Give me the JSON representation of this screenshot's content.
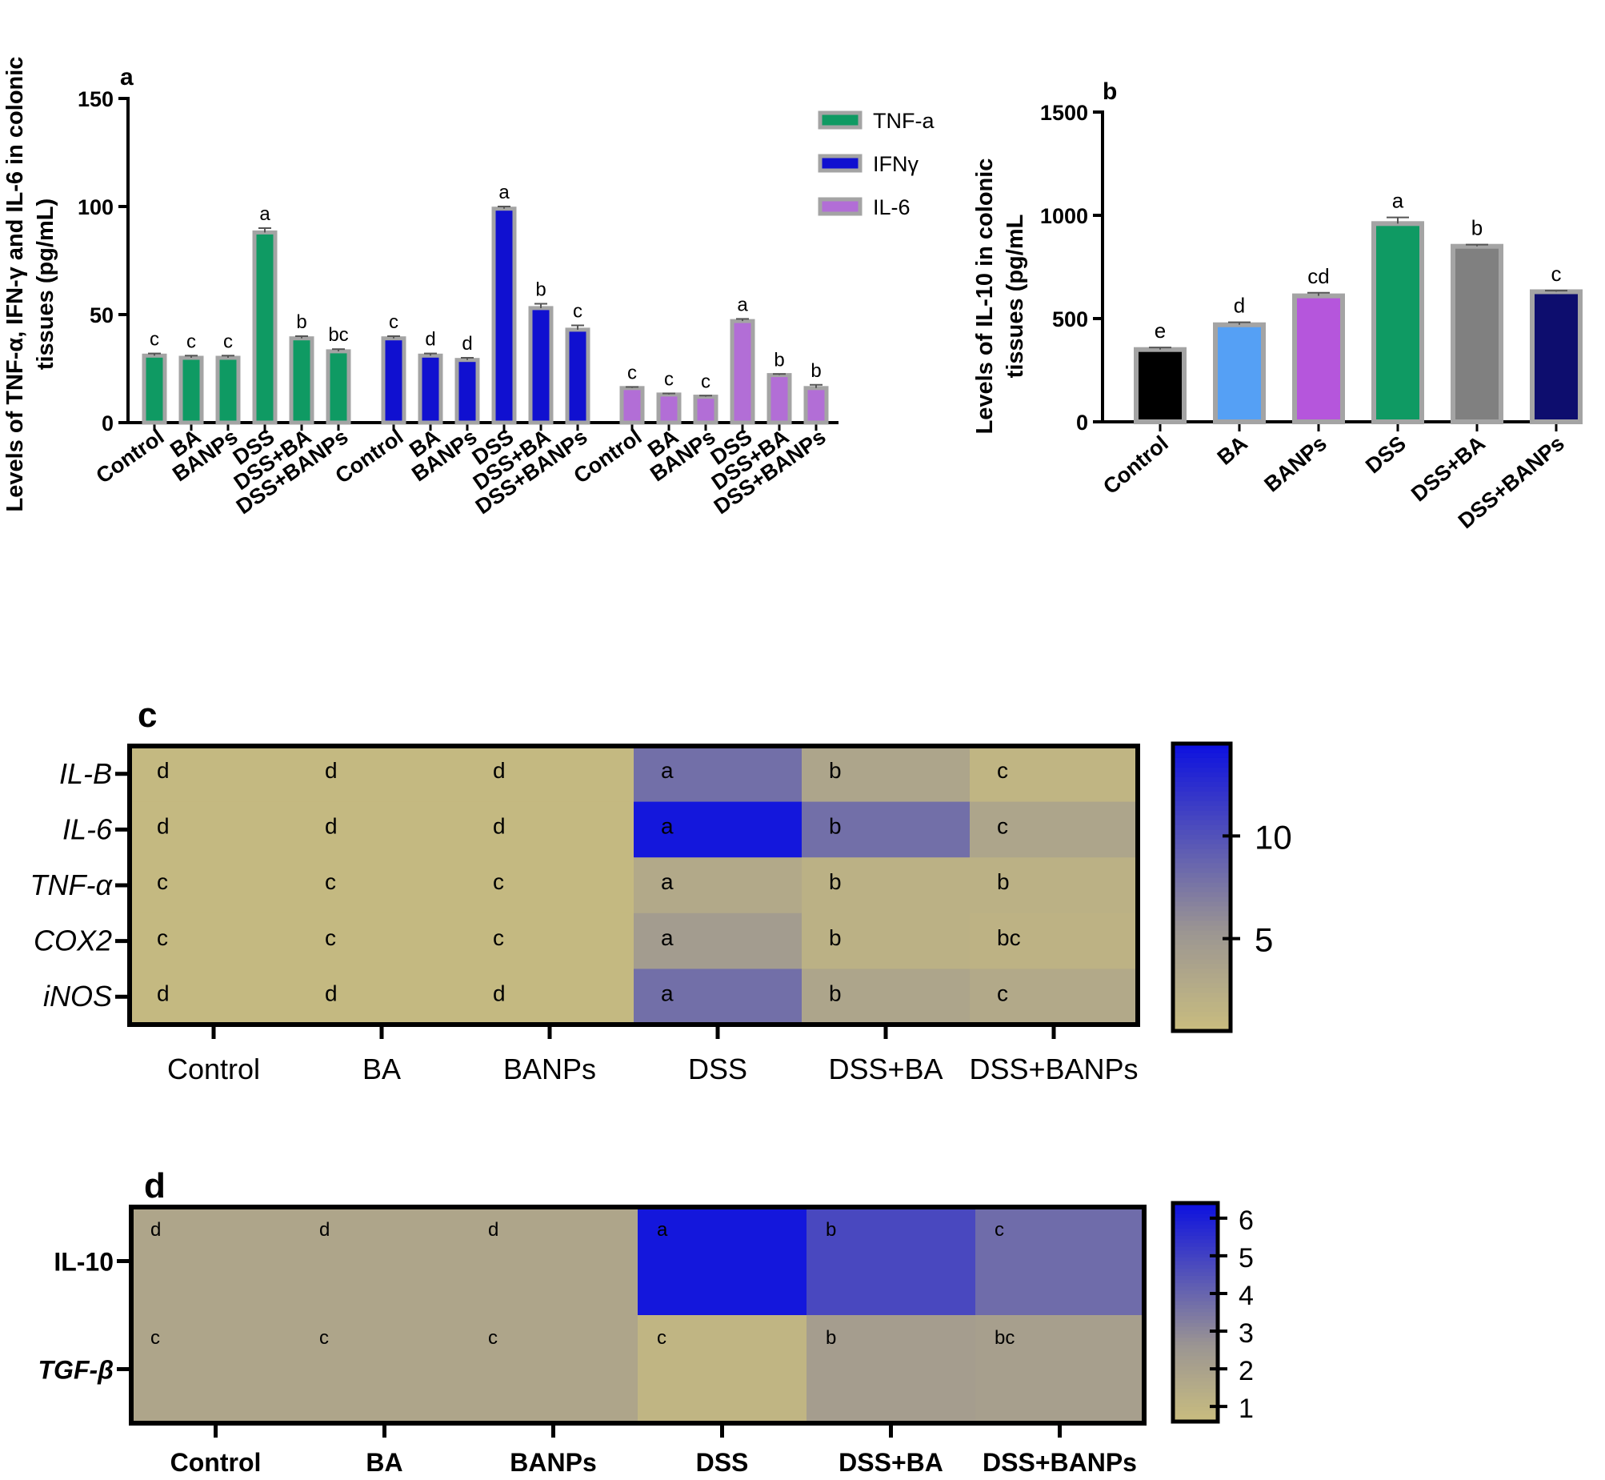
{
  "colors": {
    "green": "#0f9a63",
    "blue": "#1010d0",
    "violet": "#b26ed6",
    "navy": "#0d0d6e",
    "black": "#000000",
    "lightblue": "#55a0f5",
    "purple": "#b556dc",
    "gray": "#808080",
    "border": "#a4a4a4",
    "heat_low": "#c9bd7f",
    "heat_mid": "#9b9592",
    "heat_high": "#0c10e0"
  },
  "chart_data": [
    {
      "id": "a",
      "panel_label": "a",
      "type": "bar",
      "ylabel": "Levels of TNF-α, IFN-γ and IL-6 in colonic tissues (pg/mL)",
      "ylabel_lines": [
        "Levels of TNF-α, IFN-γ and IL-6 in colonic",
        "tissues (pg/mL)"
      ],
      "ylim": [
        0,
        150
      ],
      "yticks": [
        "0",
        "50",
        "100",
        "150"
      ],
      "categories": [
        "Control",
        "BA",
        "BANPs",
        "DSS",
        "DSS+BA",
        "DSS+BANPs"
      ],
      "legend": [
        "TNF-a",
        "IFNγ",
        "IL-6"
      ],
      "legend_placement": "top-right",
      "series": [
        {
          "name": "TNF-a",
          "color": "green",
          "values": [
            31,
            30,
            30,
            88,
            39,
            33
          ],
          "errors": [
            1,
            1,
            1,
            2,
            1,
            1
          ],
          "letters": [
            "c",
            "c",
            "c",
            "a",
            "b",
            "bc"
          ]
        },
        {
          "name": "IFNγ",
          "color": "blue",
          "values": [
            39,
            31,
            29,
            99,
            53,
            43
          ],
          "errors": [
            1,
            1,
            1,
            1,
            2,
            2
          ],
          "letters": [
            "c",
            "d",
            "d",
            "a",
            "b",
            "c"
          ]
        },
        {
          "name": "IL-6",
          "color": "violet",
          "values": [
            16,
            13,
            12,
            47,
            22,
            16
          ],
          "errors": [
            0.5,
            0.5,
            0.5,
            1,
            0.5,
            1.5
          ],
          "letters": [
            "c",
            "c",
            "c",
            "a",
            "b",
            "b"
          ]
        }
      ]
    },
    {
      "id": "b",
      "panel_label": "b",
      "type": "bar",
      "ylabel": "Levels of IL-10 in colonic tissues (pg/mL",
      "ylabel_lines": [
        "Levels of IL-10 in colonic",
        "tissues (pg/mL"
      ],
      "ylim": [
        0,
        1500
      ],
      "yticks": [
        "0",
        "500",
        "1000",
        "1500"
      ],
      "categories": [
        "Control",
        "BA",
        "BANPs",
        "DSS",
        "DSS+BA",
        "DSS+BANPs"
      ],
      "values": [
        350,
        470,
        610,
        960,
        850,
        630
      ],
      "errors": [
        10,
        12,
        15,
        30,
        8,
        5
      ],
      "colors": [
        "black",
        "lightblue",
        "purple",
        "green",
        "gray",
        "navy"
      ],
      "letters": [
        "e",
        "d",
        "cd",
        "a",
        "b",
        "c"
      ]
    },
    {
      "id": "c",
      "panel_label": "c",
      "type": "heatmap",
      "rows": [
        "IL-B",
        "IL-6",
        "TNF-α",
        "COX2",
        "iNOS"
      ],
      "columns": [
        "Control",
        "BA",
        "BANPs",
        "DSS",
        "DSS+BA",
        "DSS+BANPs"
      ],
      "values": [
        [
          1.0,
          1.0,
          1.0,
          8.0,
          3.5,
          1.5
        ],
        [
          1.0,
          1.0,
          1.0,
          14.0,
          8.0,
          3.5
        ],
        [
          1.0,
          1.0,
          1.0,
          3.0,
          2.0,
          2.0
        ],
        [
          1.0,
          1.0,
          1.0,
          4.5,
          2.0,
          1.8
        ],
        [
          1.0,
          1.0,
          1.0,
          8.0,
          3.5,
          3.0
        ]
      ],
      "letters": [
        [
          "d",
          "d",
          "d",
          "a",
          "b",
          "c"
        ],
        [
          "d",
          "d",
          "d",
          "a",
          "b",
          "c"
        ],
        [
          "c",
          "c",
          "c",
          "a",
          "b",
          "b"
        ],
        [
          "c",
          "c",
          "c",
          "a",
          "b",
          "bc"
        ],
        [
          "d",
          "d",
          "d",
          "a",
          "b",
          "c"
        ]
      ],
      "colorbar_range": [
        0.5,
        14.5
      ],
      "colorbar_ticks": [
        "5",
        "10"
      ]
    },
    {
      "id": "d",
      "panel_label": "d",
      "type": "heatmap",
      "rows": [
        "IL-10",
        "TGF-β"
      ],
      "columns": [
        "Control",
        "BA",
        "BANPs",
        "DSS",
        "DSS+BA",
        "DSS+BANPs"
      ],
      "values": [
        [
          1.8,
          1.8,
          1.8,
          6.2,
          4.8,
          3.8
        ],
        [
          1.8,
          1.8,
          1.8,
          1.0,
          2.2,
          2.1
        ]
      ],
      "letters": [
        [
          "d",
          "d",
          "d",
          "a",
          "b",
          "c"
        ],
        [
          "c",
          "c",
          "c",
          "c",
          "b",
          "bc"
        ]
      ],
      "colorbar_range": [
        0.6,
        6.4
      ],
      "colorbar_ticks": [
        "1",
        "2",
        "3",
        "4",
        "5",
        "6"
      ]
    }
  ]
}
